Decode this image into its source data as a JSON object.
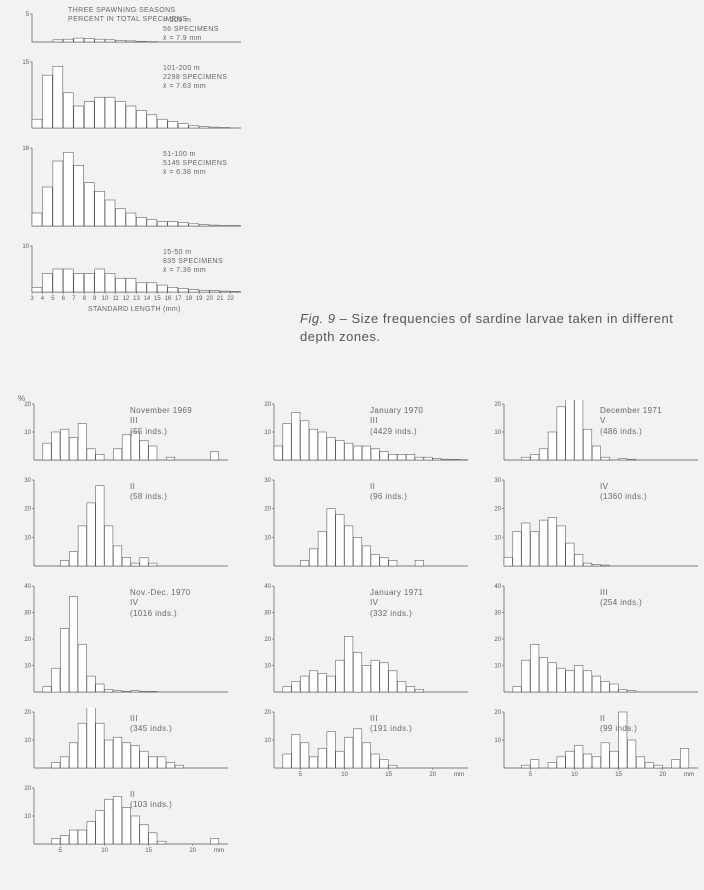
{
  "figure_caption": {
    "prefix": "Fig. 9",
    "text": "– Size frequencies of sardine larvae taken in different depth zones."
  },
  "depth_panels": {
    "header_top": "THREE SPAWNING SEASONS",
    "header_sub": "PERCENT IN TOTAL SPECIMENS",
    "x_axis_label": "STANDARD LENGTH (mm)",
    "x_ticks": [
      3,
      4,
      5,
      6,
      7,
      8,
      9,
      10,
      11,
      12,
      13,
      14,
      15,
      16,
      17,
      18,
      19,
      20,
      21,
      22
    ],
    "panels": [
      {
        "depth": "> 200 m",
        "specimens": "56 SPECIMENS",
        "mean": "x̄ = 7.9 mm",
        "ymax": 5,
        "bars": [
          0,
          0,
          0.4,
          0.5,
          0.7,
          0.6,
          0.5,
          0.4,
          0.3,
          0.2,
          0.1,
          0.05,
          0,
          0,
          0,
          0,
          0,
          0,
          0,
          0
        ]
      },
      {
        "depth": "101-200 m",
        "specimens": "2298 SPECIMENS",
        "mean": "x̄ = 7.63 mm",
        "ymax": 15,
        "bars": [
          2,
          12,
          14,
          8,
          5,
          6,
          7,
          7,
          6,
          5,
          4,
          3,
          2,
          1.5,
          1,
          0.5,
          0.3,
          0.2,
          0.1,
          0
        ]
      },
      {
        "depth": "51-100 m",
        "specimens": "5145 SPECIMENS",
        "mean": "x̄ = 6.38 mm",
        "ymax": 18,
        "bars": [
          3,
          9,
          15,
          17,
          14,
          10,
          8,
          6,
          4,
          3,
          2,
          1.5,
          1,
          1,
          0.8,
          0.5,
          0.3,
          0.2,
          0.1,
          0.1
        ]
      },
      {
        "depth": "15-50 m",
        "specimens": "835 SPECIMENS",
        "mean": "x̄ = 7.36 mm",
        "ymax": 10,
        "bars": [
          1,
          4,
          5,
          5,
          4,
          4,
          5,
          4,
          3,
          3,
          2,
          2,
          1.5,
          1,
          0.8,
          0.5,
          0.4,
          0.3,
          0.2,
          0.1
        ]
      }
    ]
  },
  "month_panels": {
    "y_axis_unit": "%",
    "x_axis_unit": "mm",
    "x_ticks": [
      5,
      10,
      15,
      20
    ],
    "columns": [
      [
        {
          "title": "November 1969",
          "series": "III",
          "count": "(55 inds.)",
          "ymax": 20,
          "bars": [
            0,
            6,
            10,
            11,
            8,
            13,
            4,
            2,
            0,
            4,
            9,
            10,
            7,
            5,
            0,
            1,
            0,
            0,
            0,
            0,
            3,
            0
          ]
        },
        {
          "title": "",
          "series": "II",
          "count": "(58 inds.)",
          "ymax": 30,
          "bars": [
            0,
            0,
            0,
            2,
            5,
            14,
            22,
            28,
            14,
            7,
            3,
            1,
            3,
            1,
            0,
            0,
            0,
            0,
            0,
            0,
            0,
            0
          ]
        },
        {
          "title": "Nov.-Dec. 1970",
          "series": "IV",
          "count": "(1016 inds.)",
          "ymax": 40,
          "bars": [
            0,
            2,
            9,
            24,
            36,
            18,
            6,
            3,
            1,
            0.5,
            0.3,
            0.5,
            0.2,
            0.2,
            0,
            0,
            0,
            0,
            0,
            0,
            0,
            0
          ]
        },
        {
          "title": "",
          "series": "III",
          "count": "(345 inds.)",
          "ymax": 20,
          "bars": [
            0,
            0,
            2,
            4,
            9,
            16,
            23,
            16,
            10,
            11,
            9,
            8,
            6,
            4,
            4,
            2,
            1,
            0,
            0,
            0,
            0,
            0
          ]
        },
        {
          "title": "",
          "series": "II",
          "count": "(103 inds.)",
          "ymax": 20,
          "bars": [
            0,
            0,
            2,
            3,
            5,
            5,
            8,
            12,
            16,
            17,
            13,
            10,
            7,
            4,
            1,
            0,
            0,
            0,
            0,
            0,
            2,
            0
          ]
        }
      ],
      [
        {
          "title": "January 1970",
          "series": "III",
          "count": "(4429 inds.)",
          "ymax": 20,
          "bars": [
            5,
            13,
            17,
            14,
            11,
            10,
            8,
            7,
            6,
            5,
            5,
            4,
            3,
            2,
            2,
            2,
            1,
            1,
            0.5,
            0.3,
            0.2,
            0.1
          ]
        },
        {
          "title": "",
          "series": "II",
          "count": "(96 inds.)",
          "ymax": 30,
          "bars": [
            0,
            0,
            0,
            2,
            6,
            12,
            20,
            18,
            14,
            10,
            7,
            4,
            3,
            2,
            0,
            0,
            2,
            0,
            0,
            0,
            0,
            0
          ]
        },
        {
          "title": "January 1971",
          "series": "IV",
          "count": "(332 inds.)",
          "ymax": 40,
          "bars": [
            0,
            2,
            4,
            6,
            8,
            7,
            6,
            12,
            21,
            15,
            10,
            12,
            11,
            8,
            4,
            2,
            1,
            0,
            0,
            0,
            0,
            0
          ]
        },
        {
          "title": "",
          "series": "III",
          "count": "(191 inds.)",
          "ymax": 20,
          "bars": [
            0,
            5,
            12,
            9,
            4,
            7,
            13,
            6,
            11,
            14,
            9,
            5,
            3,
            1,
            0,
            0,
            0,
            0,
            0,
            0,
            0,
            0
          ]
        }
      ],
      [
        {
          "title": "December 1971",
          "series": "V",
          "count": "(486 inds.)",
          "ymax": 20,
          "bars": [
            0,
            0,
            1,
            2,
            4,
            10,
            19,
            24,
            22,
            11,
            5,
            1,
            0,
            0.5,
            0.3,
            0,
            0,
            0,
            0,
            0,
            0,
            0
          ]
        },
        {
          "title": "",
          "series": "IV",
          "count": "(1360 inds.)",
          "ymax": 30,
          "bars": [
            3,
            12,
            15,
            12,
            16,
            17,
            14,
            8,
            4,
            1,
            0.5,
            0.3,
            0,
            0,
            0,
            0,
            0,
            0,
            0,
            0,
            0,
            0
          ]
        },
        {
          "title": "",
          "series": "III",
          "count": "(254 inds.)",
          "ymax": 40,
          "bars": [
            0,
            2,
            12,
            18,
            13,
            11,
            9,
            8,
            10,
            8,
            6,
            4,
            3,
            1,
            0.5,
            0,
            0,
            0,
            0,
            0,
            0,
            0
          ]
        },
        {
          "title": "",
          "series": "II",
          "count": "(99 inds.)",
          "ymax": 20,
          "bars": [
            0,
            0,
            1,
            3,
            0,
            2,
            4,
            6,
            8,
            5,
            4,
            9,
            6,
            20,
            10,
            4,
            2,
            1,
            0,
            3,
            7,
            0
          ]
        }
      ]
    ]
  },
  "style": {
    "bar_stroke": "#555555",
    "bar_fill": "#ffffff",
    "axis_stroke": "#555555",
    "background": "#f2f2f0",
    "text_color": "#5a5a5a"
  }
}
